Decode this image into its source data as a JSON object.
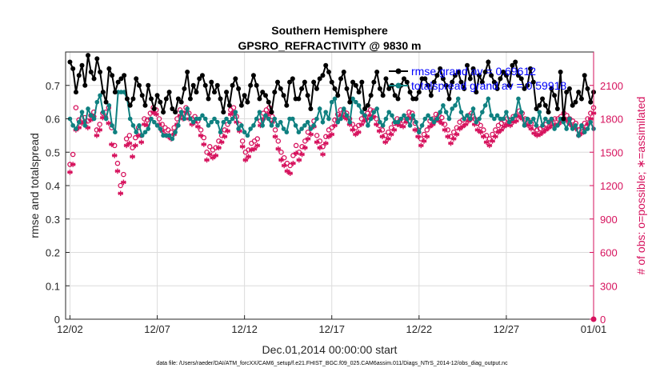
{
  "chart_data": {
    "type": "line",
    "title": "Southern Hemisphere",
    "subtitle": "GPSRO_REFRACTIVITY @ 9830 m",
    "xlabel": "Dec.01,2014 00:00:00 start",
    "ylabel_left": "rmse and totalspread",
    "ylabel_right": "# of obs: o=possible; ∗=assimilated",
    "x_ticks": [
      "12/02",
      "12/07",
      "12/12",
      "12/17",
      "12/22",
      "12/27",
      "01/01"
    ],
    "x_tick_days": [
      1,
      6,
      11,
      16,
      21,
      26,
      31
    ],
    "xlim_days": [
      0.75,
      31
    ],
    "ylim_left": [
      0,
      0.8
    ],
    "yticks_left": [
      "0",
      "0.1",
      "0.2",
      "0.3",
      "0.4",
      "0.5",
      "0.6",
      "0.7"
    ],
    "ylim_right": [
      0,
      2400
    ],
    "yticks_right": [
      "0",
      "300",
      "600",
      "900",
      "1200",
      "1500",
      "1800",
      "2100"
    ],
    "grid": true,
    "legend_position": "top-right",
    "colors": {
      "rmse": "#000000",
      "spread": "#0f8080",
      "obs": "#d6125d",
      "legend_text": "#0000ff"
    },
    "series": [
      {
        "name": "rmse grand av = 0.69612",
        "axis": "left",
        "values": [
          0.77,
          0.75,
          0.68,
          0.73,
          0.76,
          0.7,
          0.79,
          0.74,
          0.72,
          0.78,
          0.74,
          0.68,
          0.65,
          0.75,
          0.73,
          0.68,
          0.71,
          0.72,
          0.73,
          0.66,
          0.64,
          0.66,
          0.72,
          0.7,
          0.67,
          0.64,
          0.7,
          0.66,
          0.63,
          0.67,
          0.65,
          0.62,
          0.66,
          0.68,
          0.63,
          0.62,
          0.66,
          0.65,
          0.69,
          0.74,
          0.66,
          0.7,
          0.68,
          0.72,
          0.73,
          0.7,
          0.66,
          0.71,
          0.68,
          0.7,
          0.66,
          0.62,
          0.68,
          0.64,
          0.7,
          0.72,
          0.69,
          0.64,
          0.67,
          0.65,
          0.7,
          0.73,
          0.7,
          0.66,
          0.68,
          0.67,
          0.65,
          0.62,
          0.68,
          0.71,
          0.69,
          0.67,
          0.64,
          0.71,
          0.72,
          0.66,
          0.66,
          0.69,
          0.71,
          0.67,
          0.63,
          0.71,
          0.69,
          0.72,
          0.73,
          0.76,
          0.74,
          0.71,
          0.69,
          0.67,
          0.72,
          0.74,
          0.69,
          0.65,
          0.71,
          0.7,
          0.68,
          0.71,
          0.63,
          0.64,
          0.67,
          0.71,
          0.74,
          0.69,
          0.67,
          0.72,
          0.69,
          0.7,
          0.67,
          0.66,
          0.7,
          0.72,
          0.71,
          0.68,
          0.66,
          0.66,
          0.68,
          0.72,
          0.72,
          0.7,
          0.67,
          0.71,
          0.73,
          0.75,
          0.72,
          0.7,
          0.66,
          0.71,
          0.73,
          0.74,
          0.71,
          0.69,
          0.76,
          0.72,
          0.75,
          0.68,
          0.73,
          0.71,
          0.74,
          0.77,
          0.73,
          0.71,
          0.69,
          0.72,
          0.74,
          0.73,
          0.7,
          0.76,
          0.77,
          0.73,
          0.72,
          0.69,
          0.7,
          0.75,
          0.71,
          0.63,
          0.64,
          0.66,
          0.64,
          0.62,
          0.69,
          0.67,
          0.63,
          0.74,
          0.6,
          0.68,
          0.69,
          0.64,
          0.65,
          0.68,
          0.66,
          0.73,
          0.69,
          0.65,
          0.68
        ]
      },
      {
        "name": "totalspread grand av = 0.59918",
        "axis": "left",
        "values": [
          0.6,
          0.58,
          0.57,
          0.59,
          0.62,
          0.58,
          0.63,
          0.61,
          0.6,
          0.65,
          0.67,
          0.62,
          0.6,
          0.64,
          0.58,
          0.56,
          0.68,
          0.68,
          0.68,
          0.66,
          0.6,
          0.58,
          0.56,
          0.58,
          0.55,
          0.56,
          0.57,
          0.6,
          0.59,
          0.58,
          0.57,
          0.55,
          0.55,
          0.55,
          0.54,
          0.56,
          0.58,
          0.62,
          0.6,
          0.63,
          0.6,
          0.59,
          0.6,
          0.6,
          0.61,
          0.6,
          0.58,
          0.59,
          0.6,
          0.59,
          0.56,
          0.59,
          0.6,
          0.59,
          0.6,
          0.62,
          0.57,
          0.58,
          0.56,
          0.55,
          0.57,
          0.58,
          0.6,
          0.62,
          0.58,
          0.61,
          0.6,
          0.58,
          0.6,
          0.58,
          0.59,
          0.57,
          0.56,
          0.6,
          0.6,
          0.58,
          0.56,
          0.57,
          0.58,
          0.59,
          0.57,
          0.58,
          0.6,
          0.63,
          0.59,
          0.62,
          0.6,
          0.65,
          0.66,
          0.59,
          0.6,
          0.63,
          0.61,
          0.59,
          0.66,
          0.65,
          0.64,
          0.62,
          0.61,
          0.58,
          0.6,
          0.62,
          0.63,
          0.59,
          0.58,
          0.6,
          0.62,
          0.61,
          0.59,
          0.59,
          0.6,
          0.61,
          0.6,
          0.58,
          0.61,
          0.59,
          0.56,
          0.58,
          0.6,
          0.61,
          0.6,
          0.59,
          0.6,
          0.62,
          0.64,
          0.62,
          0.6,
          0.63,
          0.64,
          0.66,
          0.62,
          0.6,
          0.61,
          0.6,
          0.63,
          0.59,
          0.6,
          0.62,
          0.64,
          0.66,
          0.61,
          0.6,
          0.61,
          0.6,
          0.6,
          0.62,
          0.59,
          0.6,
          0.61,
          0.66,
          0.62,
          0.58,
          0.6,
          0.59,
          0.6,
          0.58,
          0.62,
          0.58,
          0.6,
          0.59,
          0.6,
          0.57,
          0.58,
          0.6,
          0.59,
          0.57,
          0.6,
          0.57,
          0.58,
          0.55,
          0.58,
          0.56,
          0.57,
          0.59,
          0.57
        ]
      },
      {
        "name": "possible",
        "axis": "right",
        "values": [
          1390,
          1480,
          1900,
          1790,
          1800,
          1810,
          1780,
          1830,
          1860,
          1700,
          1750,
          1850,
          1860,
          1900,
          1720,
          1560,
          1400,
          1200,
          1300,
          1620,
          1650,
          1540,
          1630,
          1720,
          1650,
          1800,
          1790,
          1850,
          1900,
          1880,
          1800,
          1750,
          1720,
          1700,
          1680,
          1720,
          1800,
          1880,
          1850,
          1900,
          1850,
          1800,
          1820,
          1780,
          1700,
          1630,
          1500,
          1550,
          1520,
          1540,
          1600,
          1650,
          1700,
          1750,
          1880,
          1900,
          1820,
          1750,
          1600,
          1500,
          1520,
          1580,
          1600,
          1620,
          1780,
          1850,
          1880,
          1900,
          1820,
          1700,
          1600,
          1500,
          1450,
          1400,
          1380,
          1470,
          1560,
          1500,
          1550,
          1600,
          1680,
          1720,
          1780,
          1650,
          1600,
          1550,
          1640,
          1700,
          1720,
          1790,
          1840,
          1880,
          1870,
          1850,
          1800,
          1750,
          1720,
          1740,
          1800,
          1830,
          1850,
          1880,
          1870,
          1800,
          1740,
          1700,
          1650,
          1680,
          1720,
          1760,
          1800,
          1790,
          1780,
          1820,
          1860,
          1850,
          1760,
          1700,
          1620,
          1660,
          1700,
          1780,
          1800,
          1840,
          1830,
          1810,
          1750,
          1700,
          1640,
          1680,
          1720,
          1770,
          1790,
          1800,
          1830,
          1850,
          1800,
          1760,
          1740,
          1700,
          1650,
          1620,
          1660,
          1700,
          1740,
          1760,
          1780,
          1800,
          1790,
          1820,
          1830,
          1870,
          1850,
          1800,
          1790,
          1760,
          1720,
          1700,
          1710,
          1730,
          1750,
          1770,
          1790,
          1800,
          1800,
          1820,
          1850,
          1830,
          1800,
          1780,
          1760,
          1700,
          1720,
          1760,
          1800,
          1850,
          1900
        ]
      },
      {
        "name": "assimilated",
        "axis": "right",
        "values": [
          1320,
          1390,
          1700,
          1720,
          1760,
          1770,
          1720,
          1790,
          1820,
          1650,
          1700,
          1810,
          1810,
          1760,
          1570,
          1470,
          1330,
          1130,
          1230,
          1560,
          1580,
          1460,
          1560,
          1650,
          1590,
          1750,
          1740,
          1800,
          1860,
          1840,
          1750,
          1690,
          1660,
          1640,
          1620,
          1660,
          1750,
          1830,
          1800,
          1860,
          1800,
          1750,
          1770,
          1730,
          1650,
          1570,
          1430,
          1480,
          1450,
          1470,
          1540,
          1590,
          1640,
          1690,
          1840,
          1860,
          1770,
          1690,
          1550,
          1430,
          1460,
          1520,
          1530,
          1560,
          1740,
          1800,
          1830,
          1850,
          1770,
          1640,
          1530,
          1430,
          1380,
          1330,
          1310,
          1400,
          1490,
          1430,
          1480,
          1540,
          1620,
          1660,
          1730,
          1590,
          1540,
          1480,
          1580,
          1640,
          1660,
          1740,
          1790,
          1830,
          1820,
          1800,
          1750,
          1700,
          1660,
          1680,
          1750,
          1780,
          1800,
          1830,
          1820,
          1750,
          1690,
          1640,
          1590,
          1620,
          1660,
          1700,
          1750,
          1740,
          1730,
          1770,
          1810,
          1800,
          1700,
          1640,
          1560,
          1600,
          1640,
          1730,
          1750,
          1790,
          1780,
          1760,
          1700,
          1640,
          1580,
          1620,
          1660,
          1710,
          1730,
          1750,
          1780,
          1800,
          1750,
          1700,
          1680,
          1640,
          1590,
          1560,
          1600,
          1640,
          1680,
          1700,
          1730,
          1750,
          1740,
          1770,
          1780,
          1820,
          1800,
          1750,
          1740,
          1710,
          1670,
          1650,
          1660,
          1680,
          1700,
          1720,
          1740,
          1750,
          1750,
          1770,
          1800,
          1780,
          1750,
          1730,
          1710,
          1650,
          1670,
          1710,
          1750,
          1800,
          1850
        ]
      }
    ]
  },
  "footer": "data file: /Users/raeder/DAI/ATM_forcXX/CAM6_setup/f.e21.FHIST_BGC.f09_025.CAM6assim.011/Diags_NTrS_2014-12/obs_diag_output.nc"
}
